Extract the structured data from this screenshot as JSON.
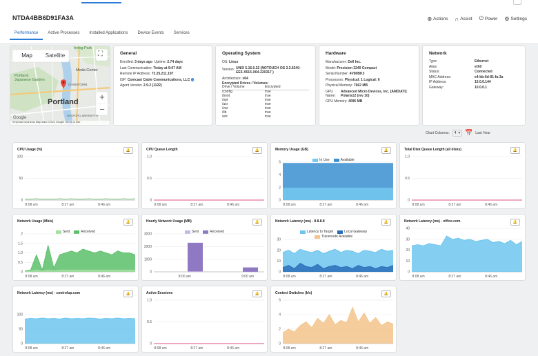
{
  "device": {
    "name": "NTDA4BB6D91FA3A"
  },
  "actions": [
    {
      "icon": "plus-circle-icon",
      "label": "Actions"
    },
    {
      "icon": "headset-icon",
      "label": "Assist"
    },
    {
      "icon": "power-icon",
      "label": "Power"
    },
    {
      "icon": "gear-icon",
      "label": "Settings"
    }
  ],
  "tabs": [
    "Performance",
    "Active Processes",
    "Installed Applications",
    "Device Events",
    "Services"
  ],
  "map": {
    "map_button": "Map",
    "satellite_button": "Satellite",
    "city": "Portland",
    "places": [
      "Irving Park",
      "Moda Center",
      "Portland Japanese Garden",
      "CHINATOWN",
      "HOSFORD-ABERNETHY"
    ],
    "attribution": "Keyboard shortcuts  Map data ©2022 Google  Terms of Use",
    "brand": "Google"
  },
  "general": {
    "title": "General",
    "enrolled_label": "Enrolled:",
    "enrolled_value": "3 days ago",
    "uptime_label": "Uptime:",
    "uptime_value": "2.74 days",
    "last_comm_label": "Last Communication:",
    "last_comm_value": "Today at 9:07 AM",
    "remote_ip_label": "Remote IP Address:",
    "remote_ip_value": "73.25.211.197",
    "isp_label": "ISP:",
    "isp_value": "Comcast Cable Communications, LLC",
    "agent_label": "Agent Version:",
    "agent_value": "2.9.2 (1122)"
  },
  "os": {
    "title": "Operating System",
    "os_label": "OS:",
    "os_value": "Linux",
    "version_label": "Version:",
    "version_line1": "UNIX 5.15.0.22 (NOTOUCH OS 3.3.6240-",
    "version_line2": "EE5-X515-X64-220317 )",
    "arch_label": "Architecture:",
    "arch_value": "x64",
    "drives_label": "Encrypted Drives / Volumes:",
    "drive_header": "Drive / Volume",
    "enc_header": "Encrypted",
    "drives": [
      {
        "drive": "/config",
        "enc": "true"
      },
      {
        "drive": "/boot",
        "enc": "true"
      },
      {
        "drive": "/opt",
        "enc": "true"
      },
      {
        "drive": "/usr",
        "enc": "true"
      },
      {
        "drive": "/var",
        "enc": "true"
      },
      {
        "drive": "/lib",
        "enc": "true"
      },
      {
        "drive": "/etc",
        "enc": "true"
      }
    ]
  },
  "hardware": {
    "title": "Hardware",
    "manufacturer_label": "Manufacturer:",
    "manufacturer_value": "Dell Inc.",
    "model_label": "Model:",
    "model_value": "Precision 3240 Compact",
    "serial_label": "Serial Number:",
    "serial_value": "4V80BK3",
    "proc_label": "Processors:",
    "proc_value": "Physical: 1 Logical: 6",
    "mem_label": "Physical Memory:",
    "mem_value": "7662 MB",
    "gpu_label": "GPU Name:",
    "gpu_line1": "Advanced Micro Devices, Inc. [AMD/ATI]",
    "gpu_line2": "Polaris12 (rev 10)",
    "gpumem_label": "GPU Memory:",
    "gpumem_value": "4096 MB"
  },
  "network": {
    "title": "Network",
    "rows": [
      {
        "label": "Type:",
        "value": "Ethernet"
      },
      {
        "label": "Alias:",
        "value": "eth0"
      },
      {
        "label": "Status:",
        "value": "Connected"
      },
      {
        "label": "MAC Address:",
        "value": "e4-bb-6d-91-fa-3a"
      },
      {
        "label": "IP Address:",
        "value": "10.0.0.144"
      },
      {
        "label": "Gateway:",
        "value": "10.0.0.1"
      }
    ]
  },
  "controls": {
    "columns_label": "Chart Columns:",
    "columns_value": "4",
    "range_label": "Last Hour"
  },
  "chart_data": [
    {
      "title": "CPU Usage (%)",
      "type": "line",
      "x_ticks": [
        "8:08 am",
        "8:27 am",
        "8:46 am"
      ],
      "ylim": [
        0,
        100
      ],
      "y_ticks": [
        "0",
        "50",
        "100"
      ],
      "series": [
        {
          "color": "#62b86a",
          "values": [
            2,
            2,
            3,
            2,
            2,
            2,
            3,
            2,
            3,
            2,
            2,
            3,
            2,
            2,
            3,
            2,
            2,
            3,
            2,
            3
          ]
        }
      ]
    },
    {
      "title": "CPU Queue Length",
      "type": "line",
      "x_ticks": [
        "8:08 am",
        "8:27 am",
        "8:46 am"
      ],
      "ylim": [
        0,
        1
      ],
      "y_ticks": [
        "0",
        "0.5",
        "1.0"
      ],
      "series": [
        {
          "color": "#e0527a",
          "values": [
            0,
            0,
            0,
            0,
            0,
            0,
            0,
            0,
            0,
            0,
            0,
            0,
            0,
            0,
            0,
            0,
            0,
            0,
            0,
            0
          ]
        }
      ]
    },
    {
      "title": "Memory Usage (GB)",
      "type": "area",
      "x_ticks": [
        "8:08 am",
        "8:27 am",
        "8:46 am"
      ],
      "ylim": [
        0,
        6
      ],
      "y_ticks": [
        "0",
        "2",
        "4",
        "6"
      ],
      "legend": [
        "In Use",
        "Available"
      ],
      "series": [
        {
          "name": "Available",
          "color": "#3a8fd0",
          "values": [
            5.8,
            5.8,
            5.8,
            5.8,
            5.8,
            5.8,
            5.8,
            5.8,
            5.8,
            5.8,
            5.8,
            5.8,
            5.8,
            5.8,
            5.8,
            5.8,
            5.8,
            5.8,
            5.8,
            5.8
          ]
        },
        {
          "name": "In Use",
          "color": "#72c8ef",
          "values": [
            1.9,
            1.9,
            1.9,
            1.9,
            1.9,
            1.9,
            1.9,
            1.9,
            1.9,
            1.9,
            1.9,
            1.9,
            1.9,
            1.9,
            1.9,
            1.9,
            1.9,
            1.9,
            1.9,
            1.9
          ]
        }
      ]
    },
    {
      "title": "Total Disk Queue Length (all disks)",
      "type": "line",
      "x_ticks": [
        "8:08 am",
        "8:27 am",
        "8:46 am"
      ],
      "ylim": [
        0,
        1
      ],
      "y_ticks": [
        "0",
        "0.5",
        "1.0"
      ],
      "series": [
        {
          "color": "#e0527a",
          "values": [
            0,
            0,
            0,
            0,
            0,
            0,
            0,
            0,
            0,
            0,
            0,
            0,
            0,
            0,
            0,
            0,
            0,
            0,
            0,
            0
          ]
        }
      ]
    },
    {
      "title": "Network Usage (Mb/s)",
      "type": "area",
      "x_ticks": [
        "8:08 am",
        "8:27 am",
        "8:46 am"
      ],
      "ylim": [
        0,
        2
      ],
      "y_ticks": [
        "0",
        "0.5",
        "1.0",
        "1.5",
        "2"
      ],
      "legend": [
        "Sent",
        "Received"
      ],
      "series": [
        {
          "name": "Received",
          "color": "#5cbf6a",
          "values": [
            0.05,
            0.1,
            0.9,
            0.1,
            1.4,
            0.2,
            0.9,
            1.0,
            1.1,
            1.0,
            1.2,
            1.1,
            1.0,
            1.1,
            1.0,
            0.9,
            1.1,
            1.0,
            1.0,
            0.9
          ]
        },
        {
          "name": "Sent",
          "color": "#a6dda2",
          "values": [
            0.02,
            0.05,
            0.1,
            0.05,
            0.1,
            0.05,
            0.1,
            0.1,
            0.1,
            0.1,
            0.1,
            0.1,
            0.1,
            0.1,
            0.1,
            0.1,
            0.1,
            0.1,
            0.1,
            0.1
          ]
        }
      ]
    },
    {
      "title": "Hourly Network Usage (MB)",
      "type": "bar",
      "x_ticks": [
        "8:00 am",
        "9:00 am"
      ],
      "ylim": [
        0,
        3000
      ],
      "y_ticks": [
        "0",
        "1000",
        "2000",
        "3000"
      ],
      "legend": [
        "Sent",
        "Received"
      ],
      "series": [
        {
          "name": "Received",
          "color": "#8e79c2",
          "values": [
            0,
            2300,
            0,
            350
          ]
        },
        {
          "name": "Sent",
          "color": "#c5b8e6",
          "values": [
            0,
            40,
            0,
            10
          ]
        }
      ]
    },
    {
      "title": "Network Latency (ms) - 8.8.8.8",
      "type": "area",
      "x_ticks": [
        "8:08 am",
        "8:27 am",
        "8:46 am"
      ],
      "ylim": [
        0,
        30
      ],
      "y_ticks": [
        "0",
        "10",
        "20",
        "30"
      ],
      "legend": [
        "Latency to Target",
        "Local Gateway",
        "Traceroute Available"
      ],
      "series": [
        {
          "name": "Latency to Target",
          "color": "#6dc6ee",
          "values": [
            18,
            20,
            17,
            21,
            19,
            18,
            20,
            17,
            19,
            21,
            18,
            20,
            19,
            17,
            20,
            19,
            18,
            21,
            19,
            20
          ]
        },
        {
          "name": "Local Gateway",
          "color": "#2a6fb8",
          "values": [
            4,
            6,
            3,
            8,
            5,
            4,
            7,
            3,
            5,
            6,
            4,
            5,
            3,
            6,
            4,
            5,
            3,
            5,
            4,
            6
          ]
        }
      ]
    },
    {
      "title": "Network Latency (ms) - office.com",
      "type": "area",
      "x_ticks": [
        "8:08 am",
        "8:27 am",
        "8:46 am"
      ],
      "ylim": [
        0,
        40
      ],
      "y_ticks": [
        "0",
        "10",
        "20",
        "30",
        "40"
      ],
      "series": [
        {
          "color": "#6dc6ee",
          "values": [
            24,
            25,
            24,
            26,
            25,
            24,
            33,
            30,
            31,
            29,
            30,
            28,
            29,
            30,
            27,
            28,
            26,
            29,
            25,
            28
          ]
        }
      ]
    },
    {
      "title": "Network Latency (ms) - controlup.com",
      "type": "area",
      "x_ticks": [
        "8:08 am",
        "8:27 am",
        "8:46 am"
      ],
      "ylim": [
        0,
        150
      ],
      "y_ticks": [
        "0",
        "50",
        "100"
      ],
      "series": [
        {
          "color": "#6dc6ee",
          "values": [
            85,
            87,
            86,
            88,
            86,
            87,
            85,
            88,
            86,
            87,
            86,
            88,
            87,
            85,
            87,
            86,
            88,
            86,
            87,
            86
          ]
        }
      ]
    },
    {
      "title": "Active Sessions",
      "type": "line",
      "x_ticks": [
        "8:08 am",
        "8:27 am",
        "8:46 am"
      ],
      "ylim": [
        0,
        1
      ],
      "y_ticks": [
        "0",
        "0.5",
        "1.0"
      ],
      "series": [
        {
          "color": "#e0527a",
          "values": [
            0,
            0,
            0,
            0,
            0,
            0,
            0,
            0,
            0,
            0,
            0,
            0,
            0,
            0,
            0,
            0,
            0,
            0,
            0,
            0
          ]
        }
      ]
    },
    {
      "title": "Context Switches (k/s)",
      "type": "area",
      "x_ticks": [
        "8:08 am",
        "8:27 am",
        "8:46 am"
      ],
      "ylim": [
        0,
        6
      ],
      "y_ticks": [
        "0",
        "2",
        "4",
        "6"
      ],
      "series": [
        {
          "color": "#f3c48c",
          "values": [
            1.5,
            2.0,
            1.6,
            2.5,
            3.0,
            2.2,
            3.5,
            2.8,
            4.0,
            2.6,
            3.2,
            2.9,
            5.0,
            3.0,
            4.2,
            2.8,
            3.6,
            2.5,
            3.0,
            2.7
          ]
        }
      ]
    }
  ]
}
